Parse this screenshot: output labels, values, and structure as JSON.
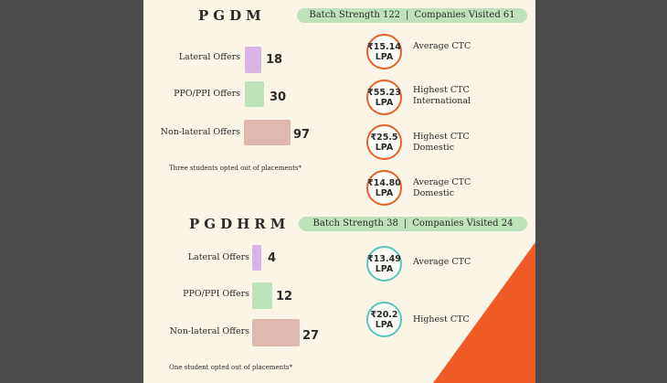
{
  "pgdm": {
    "title": "PGDM",
    "batch_strength": "Batch Strength 122",
    "separator": "|",
    "companies_visited": "Companies Visited 61",
    "offers": [
      {
        "label": "Lateral Offers",
        "value": "18",
        "color": "#d9b3e3"
      },
      {
        "label": "PPO/PPI Offers",
        "value": "30",
        "color": "#bfe3b8"
      },
      {
        "label": "Non-lateral Offers",
        "value": "97",
        "color": "#e0b8ae"
      }
    ],
    "note": "Three students opted out of placements*",
    "ctc": [
      {
        "amount": "₹15.14",
        "unit": "LPA",
        "label": "Average CTC"
      },
      {
        "amount": "₹55.23",
        "unit": "LPA",
        "label": "Highest CTC\nInternational"
      },
      {
        "amount": "₹25.5",
        "unit": "LPA",
        "label": "Highest CTC\nDomestic"
      },
      {
        "amount": "₹14.80",
        "unit": "LPA",
        "label": "Average CTC\nDomestic"
      }
    ]
  },
  "pgdhrm": {
    "title": "PGDHRM",
    "batch_strength": "Batch Strength 38",
    "separator": "|",
    "companies_visited": "Companies Visited 24",
    "offers": [
      {
        "label": "Lateral Offers",
        "value": "4",
        "color": "#d9b3e3"
      },
      {
        "label": "PPO/PPI Offers",
        "value": "12",
        "color": "#bfe3b8"
      },
      {
        "label": "Non-lateral Offers",
        "value": "27",
        "color": "#e0b8ae"
      }
    ],
    "note": "One student opted out of placements*",
    "ctc": [
      {
        "amount": "₹13.49",
        "unit": "LPA",
        "label": "Average CTC"
      },
      {
        "amount": "₹20.2",
        "unit": "LPA",
        "label": "Highest CTC"
      }
    ]
  },
  "colors": {
    "background": "#4a4a4a",
    "panel": "#fbf5e8",
    "pill": "#bfe3b8",
    "pgdm_circle": "#e8602a",
    "pgdhrm_circle": "#5cc3bf",
    "accent_triangle": "#f05a24"
  }
}
